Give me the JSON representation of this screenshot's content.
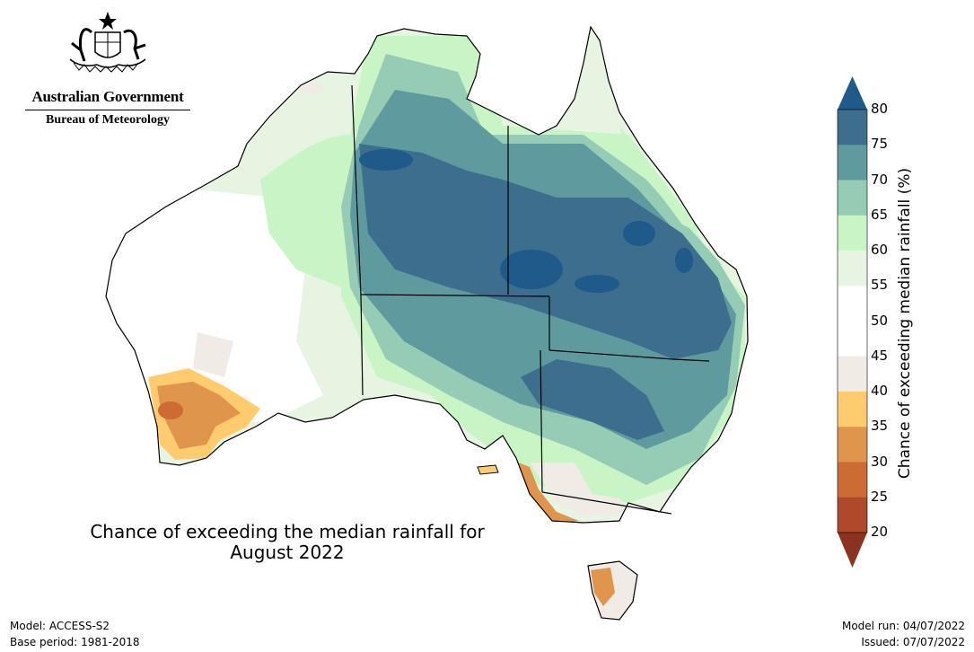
{
  "header": {
    "gov_name": "Australian Government",
    "bureau": "Bureau of Meteorology"
  },
  "title": {
    "line1": "Chance of exceeding the median rainfall for",
    "line2": "August 2022"
  },
  "colorbar": {
    "label": "Chance of exceeding median rainfall (%)",
    "ticks": [
      "80",
      "75",
      "70",
      "65",
      "60",
      "55",
      "50",
      "45",
      "40",
      "35",
      "30",
      "25",
      "20"
    ],
    "colors": [
      "#3d6e8e",
      "#5f9a9f",
      "#96ccb6",
      "#c8f4c6",
      "#e8f4e2",
      "#ffffff",
      "#ffffff",
      "#f0ebe5",
      "#fecc6e",
      "#e0954d",
      "#cc6b34",
      "#b0492a"
    ],
    "arrow_top_color": "#1f5a8a",
    "arrow_bottom_color": "#8b3220"
  },
  "footer": {
    "model": "Model: ACCESS-S2",
    "base_period": "Base period: 1981-2018",
    "model_run": "Model run: 04/07/2022",
    "issued": "Issued: 07/07/2022"
  }
}
